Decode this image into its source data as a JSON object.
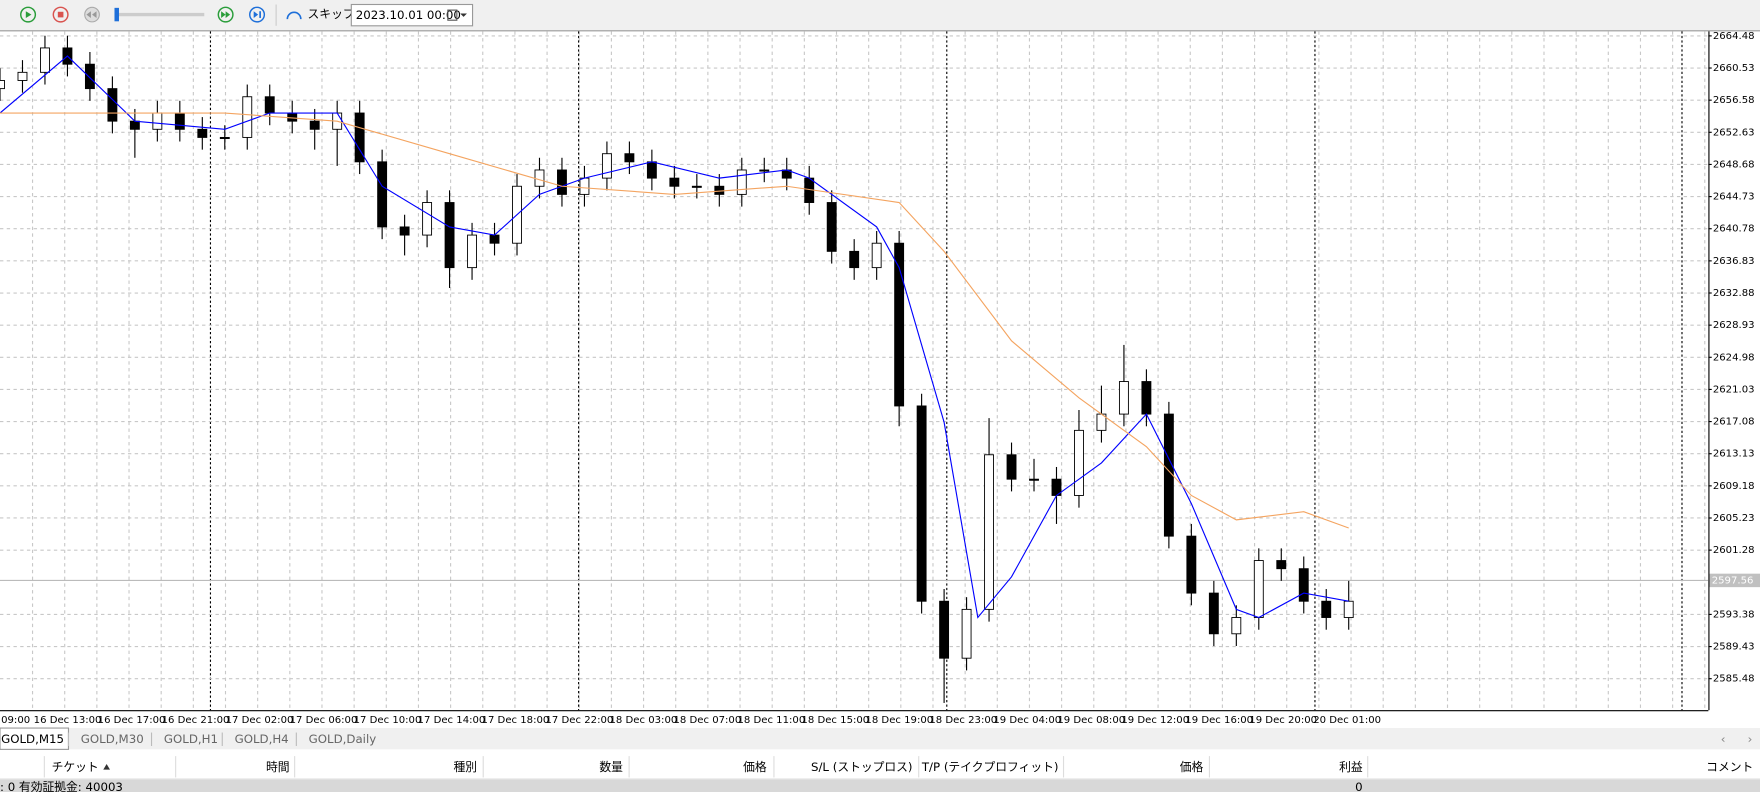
{
  "toolbar": {
    "skip": "スキップ",
    "date": "2023.10.01 00:00"
  },
  "chart_data": {
    "type": "candlestick",
    "x_labels": [
      "09:00",
      "16 Dec 13:00",
      "16 Dec 17:00",
      "16 Dec 21:00",
      "17 Dec 02:00",
      "17 Dec 06:00",
      "17 Dec 10:00",
      "17 Dec 14:00",
      "17 Dec 18:00",
      "17 Dec 22:00",
      "18 Dec 03:00",
      "18 Dec 07:00",
      "18 Dec 11:00",
      "18 Dec 15:00",
      "18 Dec 19:00",
      "18 Dec 23:00",
      "19 Dec 04:00",
      "19 Dec 08:00",
      "19 Dec 12:00",
      "19 Dec 16:00",
      "19 Dec 20:00",
      "20 Dec 01:00"
    ],
    "open": [
      2658,
      2659,
      2660,
      2663,
      2661,
      2658,
      2654,
      2653,
      2655,
      2653,
      2652,
      2652,
      2657,
      2655,
      2654,
      2653,
      2655,
      2649,
      2641,
      2640,
      2644,
      2636,
      2640,
      2639,
      2646,
      2648,
      2645,
      2647,
      2650,
      2649,
      2647,
      2646,
      2646,
      2645,
      2648,
      2648,
      2647,
      2644,
      2638,
      2636,
      2639,
      2619,
      2595,
      2588,
      2594,
      2613,
      2610,
      2610,
      2608,
      2616,
      2618,
      2622,
      2618,
      2603,
      2596,
      2591,
      2593,
      2600,
      2599,
      2595,
      2593
    ],
    "high": [
      2660.5,
      2661.5,
      2664.5,
      2664.5,
      2662.5,
      2659.5,
      2655.5,
      2656.5,
      2656.5,
      2654.5,
      2653.5,
      2658.5,
      2658.5,
      2656.5,
      2655.5,
      2656.5,
      2656.5,
      2650.5,
      2642.5,
      2645.5,
      2645.5,
      2641.5,
      2641.5,
      2647.5,
      2649.5,
      2649.5,
      2648.5,
      2651.5,
      2651.5,
      2650.5,
      2648.5,
      2647.5,
      2647.5,
      2649.5,
      2649.5,
      2649.5,
      2648.5,
      2645.5,
      2639.5,
      2640.5,
      2640.5,
      2620.5,
      2596.5,
      2595.5,
      2617.5,
      2614.5,
      2612.5,
      2611.5,
      2618.5,
      2621.5,
      2626.5,
      2623.5,
      2619.5,
      2604.5,
      2597.5,
      2594.5,
      2601.5,
      2601.5,
      2600.5,
      2596.5,
      2597.5
    ],
    "low": [
      2656.5,
      2657.5,
      2658.5,
      2659.5,
      2656.5,
      2652.5,
      2649.5,
      2651.5,
      2651.5,
      2650.5,
      2650.5,
      2650.5,
      2653.5,
      2652.5,
      2650.5,
      2648.5,
      2647.5,
      2639.5,
      2637.5,
      2638.5,
      2633.5,
      2634.5,
      2637.5,
      2637.5,
      2644.5,
      2643.5,
      2643.5,
      2645.5,
      2647.5,
      2645.5,
      2644.5,
      2644.5,
      2643.5,
      2643.5,
      2646.5,
      2645.5,
      2642.5,
      2636.5,
      2634.5,
      2634.5,
      2616.5,
      2593.5,
      2582.5,
      2586.5,
      2592.5,
      2608.5,
      2608.5,
      2604.5,
      2606.5,
      2614.5,
      2616.5,
      2616.5,
      2601.5,
      2594.5,
      2589.5,
      2589.5,
      2591.5,
      2597.5,
      2593.5,
      2591.5,
      2591.5
    ],
    "close": [
      2659,
      2660,
      2663,
      2661,
      2658,
      2654,
      2653,
      2655,
      2653,
      2652,
      2652,
      2657,
      2655,
      2654,
      2653,
      2655,
      2649,
      2641,
      2640,
      2644,
      2636,
      2640,
      2639,
      2646,
      2648,
      2645,
      2647,
      2650,
      2649,
      2647,
      2646,
      2646,
      2645,
      2648,
      2648,
      2647,
      2644,
      2638,
      2636,
      2639,
      2619,
      2595,
      2588,
      2594,
      2613,
      2610,
      2610,
      2608,
      2616,
      2618,
      2622,
      2618,
      2603,
      2596,
      2591,
      2593,
      2600,
      2599,
      2595,
      2593,
      2595
    ],
    "moving_averages": [
      {
        "color": "#0000ff",
        "x": [
          0,
          3,
          6,
          10,
          12,
          15,
          17,
          20,
          22,
          24,
          26,
          29,
          32,
          35,
          36,
          39,
          40,
          42,
          43.5,
          45,
          47,
          49,
          51,
          53,
          55,
          56,
          58,
          60
        ],
        "values": [
          2655,
          2662,
          2654,
          2653,
          2655,
          2655,
          2646,
          2641,
          2640,
          2645,
          2647,
          2649,
          2647,
          2648,
          2647,
          2641,
          2636,
          2617,
          2593,
          2598,
          2608,
          2612,
          2618,
          2607,
          2594,
          2593,
          2596,
          2595
        ]
      },
      {
        "color": "#f4a460",
        "x": [
          0,
          5,
          10,
          15,
          20,
          25,
          30,
          35,
          40,
          42,
          45,
          48,
          51,
          53,
          55,
          58,
          60
        ],
        "values": [
          2655,
          2655,
          2655,
          2654,
          2650,
          2646,
          2645,
          2646,
          2644,
          2638,
          2627,
          2620,
          2614,
          2608,
          2605,
          2606,
          2604
        ]
      }
    ],
    "xlim": [
      0,
      76
    ],
    "ylim": [
      2581.62,
      2665.03
    ],
    "yticks": [
      2664.48,
      2660.53,
      2656.58,
      2652.63,
      2648.68,
      2644.73,
      2640.78,
      2636.83,
      2632.88,
      2628.93,
      2624.98,
      2621.03,
      2617.08,
      2613.13,
      2609.18,
      2605.23,
      2601.28,
      2593.38,
      2589.43,
      2585.48
    ],
    "current_price": 2597.56,
    "grid": true
  },
  "tabs": [
    "GOLD,M15",
    "GOLD,M30",
    "GOLD,H1",
    "GOLD,H4",
    "GOLD,Daily"
  ],
  "table": {
    "headers": [
      "チケット",
      "時間",
      "種別",
      "数量",
      "価格",
      "S/L (ストップロス)",
      "T/P (テイクプロフィット)",
      "価格",
      "利益",
      "コメント"
    ],
    "rows": [
      [
        ": 0  有効証拠金: 40003",
        "0"
      ]
    ]
  }
}
